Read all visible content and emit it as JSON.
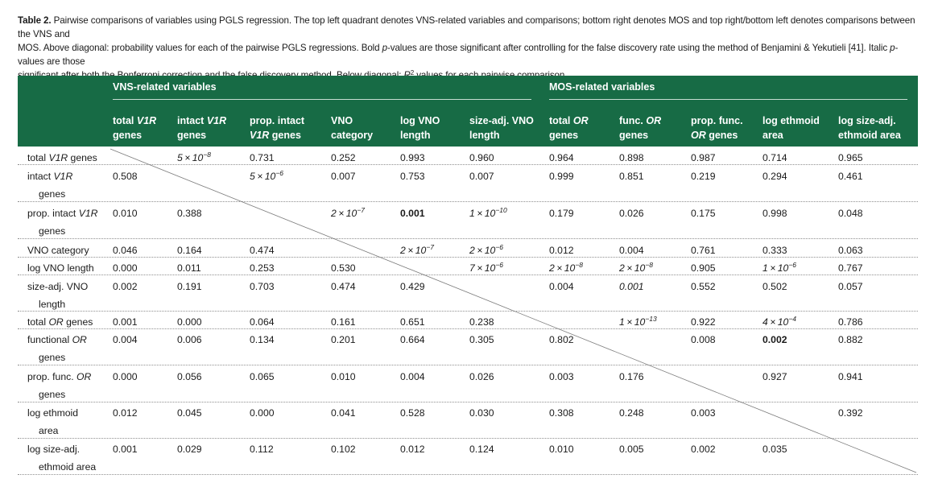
{
  "caption": {
    "lead": "Table 2.",
    "line1": " Pairwise comparisons of variables using PGLS regression. The top left quadrant denotes VNS-related variables and comparisons; bottom right denotes MOS and top right/bottom left denotes comparisons between the VNS and",
    "line2a": "MOS. Above diagonal: probability values for each of the pairwise PGLS regressions. Bold ",
    "p1": "p",
    "line2b": "-values are those significant after controlling for the false discovery rate using the method of Benjamini & Yekutieli [41]. Italic ",
    "p2": "p",
    "line2c": "-values are those",
    "line3a": "significant after both the Bonferroni correction and the false discovery method. Below diagonal: ",
    "r": "R",
    "sup2": "2",
    "line3b": " values for each pairwise comparison."
  },
  "groups": {
    "vns": "VNS-related variables",
    "mos": "MOS-related variables"
  },
  "columns": [
    {
      "a": "total ",
      "b": "V1R",
      "c": "",
      "d": "genes",
      "e": ""
    },
    {
      "a": "intact ",
      "b": "V1R",
      "c": "",
      "d": "genes",
      "e": ""
    },
    {
      "a": "prop. intact",
      "b": "",
      "c": "",
      "d": "",
      "e": "V1R",
      "f": " genes"
    },
    {
      "a": "VNO",
      "b": "",
      "c": "",
      "d": "category",
      "e": ""
    },
    {
      "a": "log VNO",
      "b": "",
      "c": "",
      "d": "length",
      "e": ""
    },
    {
      "a": "size-adj. VNO",
      "b": "",
      "c": "",
      "d": "length",
      "e": ""
    },
    {
      "a": "total ",
      "b": "OR",
      "c": "",
      "d": "genes",
      "e": ""
    },
    {
      "a": "func. ",
      "b": "OR",
      "c": "",
      "d": "genes",
      "e": ""
    },
    {
      "a": "prop. func.",
      "b": "",
      "c": "",
      "d": "",
      "e": "OR",
      "f": " genes"
    },
    {
      "a": "log ethmoid",
      "b": "",
      "c": "",
      "d": "area",
      "e": ""
    },
    {
      "a": "log size-adj.",
      "b": "",
      "c": "",
      "d": "ethmoid area",
      "e": ""
    }
  ],
  "rows": [
    {
      "l1a": "total ",
      "l1b": "V1R",
      "l1c": " genes",
      "l2": "",
      "cells": [
        "",
        {
          "m": "5",
          "e": "−8",
          "s": "i"
        },
        "0.731",
        "0.252",
        "0.993",
        "0.960",
        "0.964",
        "0.898",
        "0.987",
        "0.714",
        "0.965"
      ]
    },
    {
      "l1a": "intact ",
      "l1b": "V1R",
      "l1c": "",
      "l2": "genes",
      "cells": [
        "0.508",
        "",
        {
          "m": "5",
          "e": "−6",
          "s": "i"
        },
        "0.007",
        "0.753",
        "0.007",
        "0.999",
        "0.851",
        "0.219",
        "0.294",
        "0.461"
      ]
    },
    {
      "l1a": "prop. intact ",
      "l1b": "V1R",
      "l1c": "",
      "l2": "genes",
      "cells": [
        "0.010",
        "0.388",
        "",
        {
          "m": "2",
          "e": "−7",
          "s": "i"
        },
        {
          "v": "0.001",
          "s": "b"
        },
        {
          "m": "1",
          "e": "−10",
          "s": "i"
        },
        "0.179",
        "0.026",
        "0.175",
        "0.998",
        "0.048"
      ]
    },
    {
      "l1a": "VNO category",
      "l1b": "",
      "l1c": "",
      "l2": "",
      "cells": [
        "0.046",
        "0.164",
        "0.474",
        "",
        {
          "m": "2",
          "e": "−7",
          "s": "i"
        },
        {
          "m": "2",
          "e": "−6",
          "s": "i"
        },
        "0.012",
        "0.004",
        "0.761",
        "0.333",
        "0.063"
      ]
    },
    {
      "l1a": "log VNO length",
      "l1b": "",
      "l1c": "",
      "l2": "",
      "cells": [
        "0.000",
        "0.011",
        "0.253",
        "0.530",
        "",
        {
          "m": "7",
          "e": "−6",
          "s": "i"
        },
        {
          "m": "2",
          "e": "−8",
          "s": "i"
        },
        {
          "m": "2",
          "e": "−8",
          "s": "i"
        },
        "0.905",
        {
          "m": "1",
          "e": "−6",
          "s": "i"
        },
        "0.767"
      ]
    },
    {
      "l1a": "size-adj. VNO",
      "l1b": "",
      "l1c": "",
      "l2": "length",
      "cells": [
        "0.002",
        "0.191",
        "0.703",
        "0.474",
        "0.429",
        "",
        "0.004",
        {
          "v": "0.001",
          "s": "i"
        },
        "0.552",
        "0.502",
        "0.057"
      ]
    },
    {
      "l1a": "total ",
      "l1b": "OR",
      "l1c": " genes",
      "l2": "",
      "cells": [
        "0.001",
        "0.000",
        "0.064",
        "0.161",
        "0.651",
        "0.238",
        "",
        {
          "m": "1",
          "e": "−13",
          "s": "i"
        },
        "0.922",
        {
          "m": "4",
          "e": "−4",
          "s": "i"
        },
        "0.786"
      ]
    },
    {
      "l1a": "functional ",
      "l1b": "OR",
      "l1c": "",
      "l2": "genes",
      "cells": [
        "0.004",
        "0.006",
        "0.134",
        "0.201",
        "0.664",
        "0.305",
        "0.802",
        "",
        "0.008",
        {
          "v": "0.002",
          "s": "b"
        },
        "0.882"
      ]
    },
    {
      "l1a": "prop. func. ",
      "l1b": "OR",
      "l1c": "",
      "l2": "genes",
      "cells": [
        "0.000",
        "0.056",
        "0.065",
        "0.010",
        "0.004",
        "0.026",
        "0.003",
        "0.176",
        "",
        "0.927",
        "0.941"
      ]
    },
    {
      "l1a": "log ethmoid",
      "l1b": "",
      "l1c": "",
      "l2": "area",
      "cells": [
        "0.012",
        "0.045",
        "0.000",
        "0.041",
        "0.528",
        "0.030",
        "0.308",
        "0.248",
        "0.003",
        "",
        "0.392"
      ]
    },
    {
      "l1a": "log size-adj.",
      "l1b": "",
      "l1c": "",
      "l2": "ethmoid area",
      "cells": [
        "0.001",
        "0.029",
        "0.112",
        "0.102",
        "0.012",
        "0.124",
        "0.010",
        "0.005",
        "0.002",
        "0.035",
        ""
      ]
    }
  ],
  "colors": {
    "header_bg": "#176b45",
    "header_text": "#ffffff"
  }
}
